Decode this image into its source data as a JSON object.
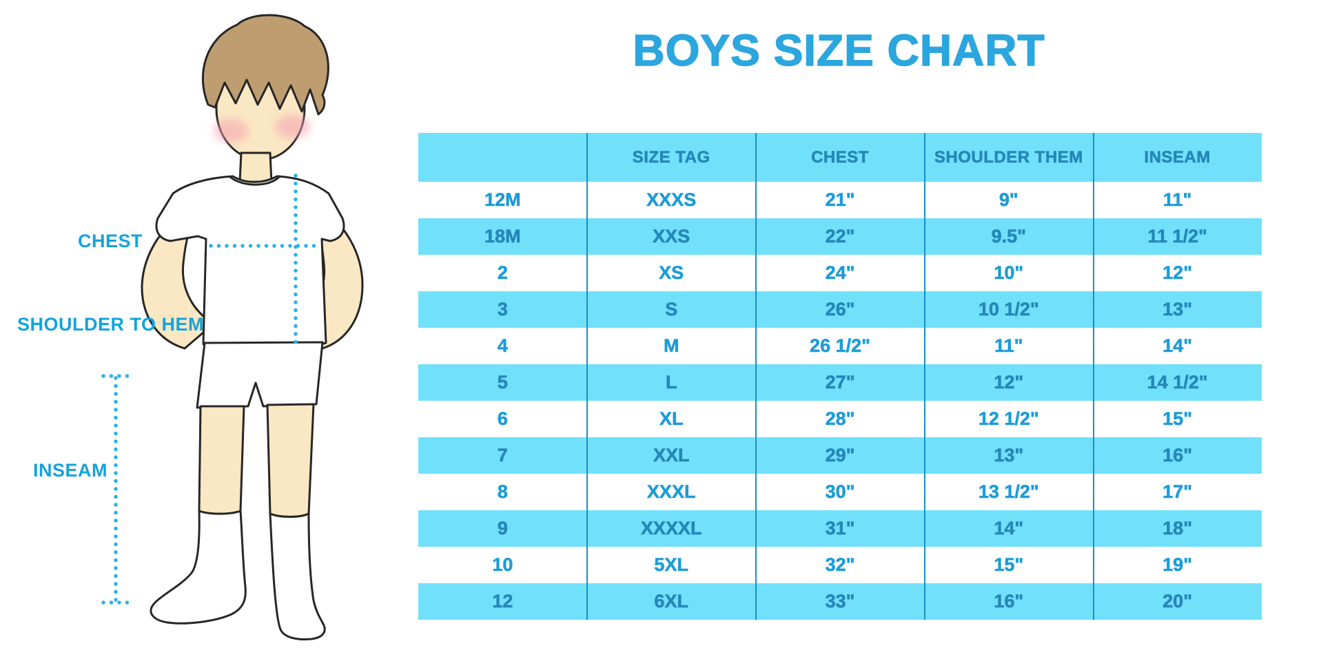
{
  "title": "BOYS SIZE CHART",
  "figure": {
    "labels": {
      "chest": "CHEST",
      "shoulder_to_hem": "SHOULDER TO HEM",
      "inseam": "INSEAM"
    }
  },
  "chart_data": {
    "type": "table",
    "title": "BOYS SIZE CHART",
    "columns": [
      "",
      "SIZE TAG",
      "CHEST",
      "SHOULDER THEM",
      "INSEAM"
    ],
    "rows": [
      [
        "12M",
        "XXXS",
        "21\"",
        "9\"",
        "11\""
      ],
      [
        "18M",
        "XXS",
        "22\"",
        "9.5\"",
        "11 1/2\""
      ],
      [
        "2",
        "XS",
        "24\"",
        "10\"",
        "12\""
      ],
      [
        "3",
        "S",
        "26\"",
        "10 1/2\"",
        "13\""
      ],
      [
        "4",
        "M",
        "26 1/2\"",
        "11\"",
        "14\""
      ],
      [
        "5",
        "L",
        "27\"",
        "12\"",
        "14 1/2\""
      ],
      [
        "6",
        "XL",
        "28\"",
        "12 1/2\"",
        "15\""
      ],
      [
        "7",
        "XXL",
        "29\"",
        "13\"",
        "16\""
      ],
      [
        "8",
        "XXXL",
        "30\"",
        "13 1/2\"",
        "17\""
      ],
      [
        "9",
        "XXXXL",
        "31\"",
        "14\"",
        "18\""
      ],
      [
        "10",
        "5XL",
        "32\"",
        "15\"",
        "19\""
      ],
      [
        "12",
        "6XL",
        "33\"",
        "16\"",
        "20\""
      ]
    ],
    "row_striping": "white/light-blue alternating, header light-blue",
    "layout": {
      "grid": "vertical column dividers only",
      "legend": "none"
    }
  },
  "colors": {
    "title_blue": "#2BA6DE",
    "label_blue": "#14A3DC",
    "row_light_blue": "#71E0FB",
    "text_on_blue": "#2587B8",
    "text_on_white": "#1E9CD6",
    "column_divider": "#1690C6",
    "measure_dots": "#2AB1E8",
    "skin": "#FAE7C3",
    "hair": "#BE9D71"
  }
}
